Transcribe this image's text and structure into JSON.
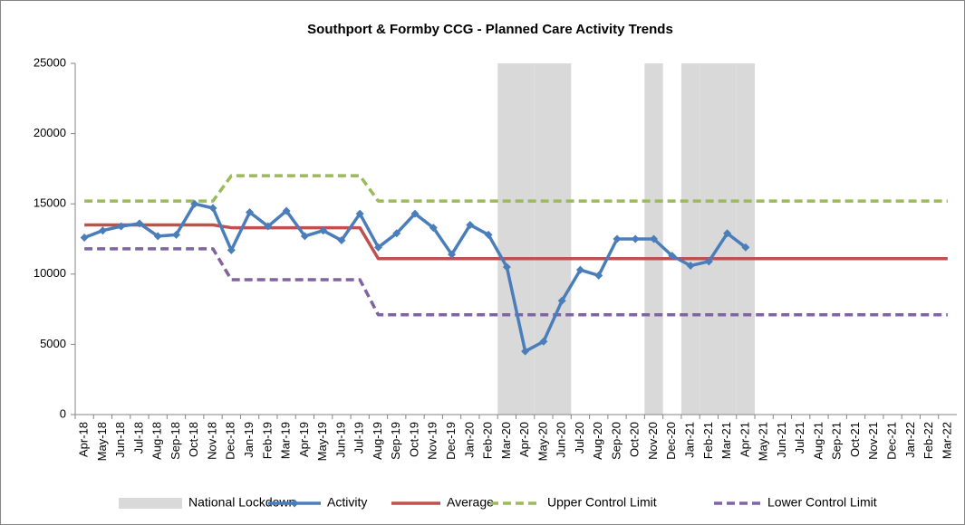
{
  "chart_data": {
    "type": "line",
    "title": "Southport & Formby CCG - Planned Care Activity Trends",
    "categories": [
      "Apr-18",
      "May-18",
      "Jun-18",
      "Jul-18",
      "Aug-18",
      "Sep-18",
      "Oct-18",
      "Nov-18",
      "Dec-18",
      "Jan-19",
      "Feb-19",
      "Mar-19",
      "Apr-19",
      "May-19",
      "Jun-19",
      "Jul-19",
      "Aug-19",
      "Sep-19",
      "Oct-19",
      "Nov-19",
      "Dec-19",
      "Jan-20",
      "Feb-20",
      "Mar-20",
      "Apr-20",
      "May-20",
      "Jun-20",
      "Jul-20",
      "Aug-20",
      "Sep-20",
      "Oct-20",
      "Nov-20",
      "Dec-20",
      "Jan-21",
      "Feb-21",
      "Mar-21",
      "Apr-21",
      "May-21",
      "Jun-21",
      "Jul-21",
      "Aug-21",
      "Sep-21",
      "Oct-21",
      "Nov-21",
      "Dec-21",
      "Jan-22",
      "Feb-22",
      "Mar-22"
    ],
    "series": [
      {
        "name": "National Lockdown",
        "kind": "bar",
        "color": "#d9d9d9",
        "values": [
          null,
          null,
          null,
          null,
          null,
          null,
          null,
          null,
          null,
          null,
          null,
          null,
          null,
          null,
          null,
          null,
          null,
          null,
          null,
          null,
          null,
          null,
          null,
          25000,
          25000,
          25000,
          25000,
          null,
          null,
          null,
          null,
          25000,
          null,
          25000,
          25000,
          25000,
          25000,
          null,
          null,
          null,
          null,
          null,
          null,
          null,
          null,
          null,
          null,
          null
        ]
      },
      {
        "name": "Activity",
        "kind": "line",
        "marker": "diamond",
        "color": "#4a7ebb",
        "values": [
          12600,
          13100,
          13400,
          13600,
          12700,
          12800,
          15000,
          14700,
          11700,
          14400,
          13400,
          14500,
          12700,
          13100,
          12400,
          14300,
          11900,
          12900,
          14300,
          13300,
          11400,
          13500,
          12800,
          10500,
          4500,
          5200,
          8100,
          10300,
          9900,
          12500,
          12500,
          12500,
          11300,
          10600,
          10900,
          12900,
          11900,
          null,
          null,
          null,
          null,
          null,
          null,
          null,
          null,
          null,
          null,
          null
        ]
      },
      {
        "name": "Average",
        "kind": "line",
        "color": "#c0504d",
        "values": [
          13500,
          13500,
          13500,
          13500,
          13500,
          13500,
          13500,
          13500,
          13300,
          13300,
          13300,
          13300,
          13300,
          13300,
          13300,
          13300,
          11100,
          11100,
          11100,
          11100,
          11100,
          11100,
          11100,
          11100,
          11100,
          11100,
          11100,
          11100,
          11100,
          11100,
          11100,
          11100,
          11100,
          11100,
          11100,
          11100,
          11100,
          11100,
          11100,
          11100,
          11100,
          11100,
          11100,
          11100,
          11100,
          11100,
          11100,
          11100
        ]
      },
      {
        "name": "Upper Control Limit",
        "kind": "line",
        "dash": true,
        "color": "#9bbb59",
        "values": [
          15200,
          15200,
          15200,
          15200,
          15200,
          15200,
          15200,
          15200,
          17000,
          17000,
          17000,
          17000,
          17000,
          17000,
          17000,
          17000,
          15200,
          15200,
          15200,
          15200,
          15200,
          15200,
          15200,
          15200,
          15200,
          15200,
          15200,
          15200,
          15200,
          15200,
          15200,
          15200,
          15200,
          15200,
          15200,
          15200,
          15200,
          15200,
          15200,
          15200,
          15200,
          15200,
          15200,
          15200,
          15200,
          15200,
          15200,
          15200
        ]
      },
      {
        "name": "Lower Control Limit",
        "kind": "line",
        "dash": true,
        "color": "#8064a2",
        "values": [
          11800,
          11800,
          11800,
          11800,
          11800,
          11800,
          11800,
          11800,
          9600,
          9600,
          9600,
          9600,
          9600,
          9600,
          9600,
          9600,
          7100,
          7100,
          7100,
          7100,
          7100,
          7100,
          7100,
          7100,
          7100,
          7100,
          7100,
          7100,
          7100,
          7100,
          7100,
          7100,
          7100,
          7100,
          7100,
          7100,
          7100,
          7100,
          7100,
          7100,
          7100,
          7100,
          7100,
          7100,
          7100,
          7100,
          7100,
          7100
        ]
      }
    ],
    "ylim": [
      0,
      25000
    ],
    "yticks": [
      0,
      5000,
      10000,
      15000,
      20000,
      25000
    ],
    "legend": "bottom"
  }
}
